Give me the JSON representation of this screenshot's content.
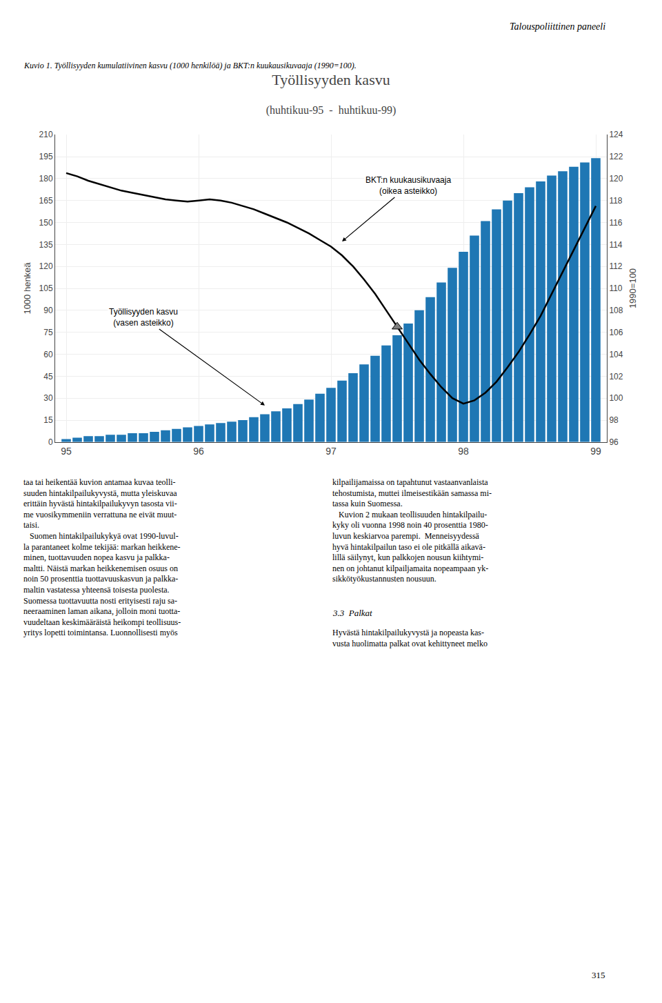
{
  "chart_data": {
    "type": "bar",
    "title": "Työllisyyden kasvu",
    "subtitle": "(huhtikuu-95  -  huhtikuu-99)",
    "ylabel": "1000 henkeä",
    "y2label": "1990=100",
    "categories": [
      "95",
      null,
      null,
      null,
      null,
      null,
      null,
      null,
      null,
      null,
      null,
      null,
      "96",
      null,
      null,
      null,
      null,
      null,
      null,
      null,
      null,
      null,
      null,
      null,
      "97",
      null,
      null,
      null,
      null,
      null,
      null,
      null,
      null,
      null,
      null,
      null,
      "98",
      null,
      null,
      null,
      null,
      null,
      null,
      null,
      null,
      null,
      null,
      null,
      "99"
    ],
    "series": [
      {
        "name": "Työllisyyden kasvu\n(vasen asteikko)",
        "type": "bar",
        "values": [
          2,
          3,
          4,
          4,
          5,
          5,
          6,
          6,
          7,
          8,
          9,
          10,
          11,
          12,
          13,
          14,
          15,
          17,
          19,
          21,
          23,
          26,
          29,
          33,
          37,
          42,
          47,
          53,
          59,
          66,
          73,
          81,
          90,
          99,
          109,
          119,
          130,
          141,
          151,
          159,
          165,
          170,
          174,
          178,
          182,
          185,
          188,
          191,
          194
        ]
      },
      {
        "name": "BKT:n kuukausikuvaaja\n(oikea asteikko)",
        "type": "line",
        "axis": "y2",
        "color": "#000000",
        "values": [
          120.5,
          120.2,
          119.8,
          119.5,
          119.2,
          118.9,
          118.7,
          118.5,
          118.3,
          118.1,
          118.0,
          117.9,
          118.0,
          118.1,
          118.0,
          117.8,
          117.5,
          117.2,
          116.8,
          116.4,
          116.0,
          115.5,
          115.0,
          114.4,
          113.8,
          113.0,
          112.0,
          110.8,
          109.5,
          108.0,
          106.5,
          105.0,
          103.5,
          102.2,
          101.0,
          100.0,
          99.5,
          99.8,
          100.5,
          101.5,
          102.8,
          104.2,
          105.8,
          107.5,
          109.5,
          111.5,
          113.5,
          115.5,
          117.5
        ]
      },
      {
        "type": "scatter",
        "axis": "y2",
        "color": "gray",
        "marker": "triangle-up",
        "values": [
          null,
          null,
          null,
          null,
          null,
          null,
          null,
          null,
          null,
          null,
          null,
          null,
          null,
          null,
          null,
          null,
          null,
          null,
          null,
          null,
          null,
          null,
          null,
          null,
          null,
          null,
          null,
          null,
          null,
          null,
          106.5,
          null,
          null,
          null,
          null,
          null,
          null,
          null,
          null,
          null,
          null,
          null,
          null,
          null,
          null,
          null,
          null,
          null,
          null
        ]
      }
    ],
    "ylim": [
      0,
      210
    ],
    "yticks": [
      0,
      15,
      30,
      45,
      60,
      75,
      90,
      105,
      120,
      135,
      150,
      165,
      180,
      195,
      210
    ],
    "y2lim": [
      96,
      124
    ],
    "y2ticks": [
      96,
      98,
      100,
      102,
      104,
      106,
      108,
      110,
      112,
      114,
      116,
      118,
      120,
      122,
      124
    ],
    "grid": true,
    "annotations": [
      "Talouspoliittinen paneeli",
      "Kuvio 1. Työllisyyden kumulatiivinen kasvu (1000 henkilöä) ja BKT:n kuukausikuvaaja (1990=100).",
      "taa tai heikentää kuvion antamaa kuvaa teolli-\nsuuden hintakilpailukyvystä, mutta yleiskuvaa\nerittäin hyvästä hintakilpailukyvyn tasosta vii-\nme vuosikymmeniin verrattuna ne eivät muut-\ntaisi.\n   Suomen hintakilpailukykyä ovat 1990-luvul-\nla parantaneet kolme tekijää: markan heikkene-\nminen, tuottavuuden nopea kasvu ja palkka-\nmaltti. Näistä markan heikkenemisen osuus on\nnoin 50 prosenttia tuottavuuskasvun ja palkka-\nmaltin vastatessa yhteensä toisesta puolesta.\nSuomessa tuottavuutta nosti erityisesti raju sa-\nneeraaminen laman aikana, jolloin moni tuotta-\nvuudeltaan keskimääräistä heikompi teollisuus-\nyritys lopetti toimintansa. Luonnollisesti myös",
      "kilpailijamaissa on tapahtunut vastaanvanlaista\ntehostumista, muttei ilmeisestikään samassa mi-\ntassa kuin Suomessa.\n   Kuvion 2 mukaan teollisuuden hintakilpailu-\nkyky oli vuonna 1998 noin 40 prosenttia 1980-\nluvun keskiarvoa parempi.  Menneisyydessä\nhyvä hintakilpailun taso ei ole pitkällä aikavä-\nlillä säilynyt, kun palkkojen nousun kiihtymi-\nnen on johtanut kilpailjamaita nopeampaan yk-\nsikkötyökustannusten nousuun.",
      "3.3  Palkat",
      "Hyvästä hintakilpailukyvystä ja nopeasta kas-\nvusta huolimatta palkat ovat kehittyneet melko",
      "315"
    ]
  }
}
